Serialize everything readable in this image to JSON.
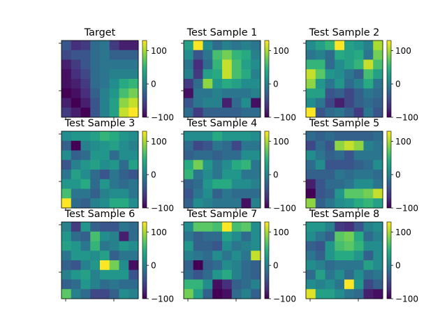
{
  "chart_data": {
    "type": "heatmap",
    "layout": {
      "rows": 3,
      "cols": 3
    },
    "colormap": "viridis",
    "colorbar": {
      "min": -100,
      "max": 130,
      "ticks": [
        100,
        0,
        -100
      ]
    },
    "panels": [
      {
        "title": "Target",
        "values": [
          [
            -40,
            -70,
            -60,
            -20,
            -10,
            -60,
            -80,
            -80
          ],
          [
            -50,
            -40,
            -40,
            -20,
            -10,
            -30,
            -30,
            -30
          ],
          [
            -80,
            -60,
            -40,
            -20,
            -10,
            -10,
            -10,
            -10
          ],
          [
            -90,
            -70,
            -50,
            -20,
            -10,
            0,
            0,
            0
          ],
          [
            -90,
            -80,
            -60,
            -20,
            -10,
            10,
            40,
            50
          ],
          [
            -100,
            -90,
            -70,
            -30,
            0,
            20,
            60,
            80
          ],
          [
            -80,
            -100,
            -80,
            -40,
            0,
            30,
            90,
            110
          ],
          [
            -60,
            -80,
            -100,
            -40,
            0,
            30,
            110,
            130
          ]
        ]
      },
      {
        "title": "Test Sample 1",
        "values": [
          [
            30,
            130,
            10,
            -20,
            0,
            -10,
            0,
            -10
          ],
          [
            10,
            -40,
            -10,
            60,
            80,
            50,
            40,
            0
          ],
          [
            -10,
            -70,
            -20,
            50,
            110,
            60,
            30,
            10
          ],
          [
            0,
            -60,
            30,
            40,
            110,
            60,
            40,
            0
          ],
          [
            -60,
            -20,
            90,
            20,
            40,
            30,
            10,
            10
          ],
          [
            -90,
            -10,
            -10,
            0,
            -10,
            -10,
            -10,
            0
          ],
          [
            -40,
            -10,
            0,
            0,
            -80,
            -20,
            10,
            -90
          ],
          [
            -20,
            -60,
            -30,
            -30,
            -30,
            -30,
            -20,
            -20
          ]
        ]
      },
      {
        "title": "Test Sample 2",
        "values": [
          [
            10,
            30,
            50,
            130,
            30,
            20,
            0,
            100
          ],
          [
            -10,
            0,
            -20,
            40,
            30,
            40,
            -10,
            80
          ],
          [
            50,
            50,
            -20,
            10,
            30,
            50,
            110,
            60
          ],
          [
            110,
            70,
            20,
            10,
            -10,
            -30,
            60,
            30
          ],
          [
            90,
            20,
            -10,
            20,
            -20,
            0,
            40,
            -10
          ],
          [
            30,
            30,
            -40,
            -30,
            -50,
            -30,
            -10,
            -20
          ],
          [
            10,
            -10,
            -50,
            -80,
            -50,
            -30,
            -20,
            -30
          ],
          [
            130,
            -40,
            -20,
            -10,
            -30,
            -60,
            -10,
            -40
          ]
        ]
      },
      {
        "title": "Test Sample 3",
        "values": [
          [
            10,
            20,
            20,
            30,
            50,
            40,
            20,
            10
          ],
          [
            -30,
            -100,
            0,
            10,
            20,
            30,
            10,
            0
          ],
          [
            10,
            -30,
            -20,
            20,
            20,
            -20,
            10,
            10
          ],
          [
            -40,
            0,
            20,
            30,
            10,
            20,
            -20,
            30
          ],
          [
            -10,
            30,
            10,
            -20,
            -40,
            -10,
            -30,
            -40
          ],
          [
            20,
            20,
            40,
            -20,
            20,
            -10,
            -20,
            -10
          ],
          [
            60,
            -10,
            -10,
            -30,
            0,
            10,
            10,
            -10
          ],
          [
            130,
            -20,
            -30,
            0,
            10,
            40,
            40,
            10
          ]
        ]
      },
      {
        "title": "Test Sample 4",
        "values": [
          [
            10,
            10,
            10,
            40,
            20,
            20,
            20,
            10
          ],
          [
            -20,
            -50,
            -40,
            -10,
            -20,
            -50,
            -10,
            -10
          ],
          [
            -30,
            -20,
            -20,
            -30,
            -20,
            -20,
            10,
            10
          ],
          [
            40,
            80,
            20,
            -10,
            10,
            40,
            50,
            -10
          ],
          [
            50,
            -10,
            10,
            -10,
            20,
            20,
            -10,
            -10
          ],
          [
            -30,
            -20,
            20,
            40,
            40,
            10,
            10,
            0
          ],
          [
            -40,
            -10,
            10,
            -30,
            -10,
            -20,
            -20,
            -20
          ],
          [
            -30,
            10,
            0,
            -10,
            -10,
            -10,
            -90,
            0
          ]
        ]
      },
      {
        "title": "Test Sample 5",
        "values": [
          [
            -20,
            -30,
            -20,
            -30,
            -30,
            -30,
            -30,
            -20
          ],
          [
            -50,
            -20,
            -40,
            90,
            110,
            90,
            0,
            -10
          ],
          [
            10,
            -10,
            -30,
            -20,
            -40,
            -10,
            -10,
            -10
          ],
          [
            -20,
            10,
            -40,
            -40,
            -40,
            -30,
            -20,
            10
          ],
          [
            -30,
            -30,
            -30,
            -10,
            -20,
            -10,
            -10,
            -20
          ],
          [
            -80,
            -40,
            -20,
            -20,
            -10,
            10,
            10,
            -10
          ],
          [
            -100,
            -40,
            -30,
            20,
            70,
            70,
            80,
            110
          ],
          [
            90,
            -30,
            -10,
            10,
            20,
            40,
            50,
            30
          ]
        ]
      },
      {
        "title": "Test Sample 6",
        "values": [
          [
            0,
            -60,
            20,
            -30,
            -40,
            -40,
            -10,
            -20
          ],
          [
            20,
            -20,
            -30,
            60,
            10,
            0,
            -80,
            -20
          ],
          [
            30,
            20,
            -10,
            50,
            -10,
            0,
            20,
            10
          ],
          [
            -10,
            20,
            20,
            10,
            30,
            -30,
            -10,
            -10
          ],
          [
            -30,
            -40,
            0,
            20,
            130,
            80,
            10,
            -90
          ],
          [
            0,
            20,
            30,
            0,
            20,
            20,
            20,
            -40
          ],
          [
            -30,
            -20,
            20,
            0,
            -20,
            -10,
            -20,
            -20
          ],
          [
            70,
            0,
            -20,
            -50,
            -50,
            -30,
            10,
            0
          ]
        ]
      },
      {
        "title": "Test Sample 7",
        "values": [
          [
            10,
            70,
            70,
            60,
            130,
            60,
            70,
            10
          ],
          [
            -10,
            -30,
            -20,
            -20,
            30,
            10,
            -20,
            10
          ],
          [
            20,
            -30,
            -30,
            -40,
            10,
            -10,
            0,
            10
          ],
          [
            0,
            -10,
            -20,
            10,
            -10,
            10,
            -10,
            110
          ],
          [
            -30,
            -100,
            -30,
            -20,
            10,
            0,
            -20,
            -30
          ],
          [
            -20,
            -40,
            -20,
            20,
            40,
            0,
            -20,
            -30
          ],
          [
            50,
            50,
            10,
            -90,
            -70,
            -30,
            -20,
            0
          ],
          [
            80,
            30,
            -30,
            -100,
            -90,
            -20,
            0,
            -30
          ]
        ]
      },
      {
        "title": "Test Sample 8",
        "values": [
          [
            20,
            20,
            0,
            -60,
            -70,
            -40,
            0,
            10
          ],
          [
            10,
            -10,
            -30,
            70,
            80,
            40,
            -20,
            0
          ],
          [
            -30,
            -40,
            20,
            60,
            70,
            50,
            10,
            10
          ],
          [
            -10,
            -30,
            20,
            40,
            40,
            20,
            -30,
            10
          ],
          [
            10,
            0,
            -20,
            -10,
            -10,
            -10,
            30,
            10
          ],
          [
            -20,
            30,
            -10,
            10,
            -20,
            10,
            -20,
            -10
          ],
          [
            10,
            0,
            10,
            -10,
            130,
            20,
            -50,
            -30
          ],
          [
            120,
            30,
            30,
            10,
            -10,
            -20,
            -80,
            -90
          ]
        ]
      }
    ]
  }
}
